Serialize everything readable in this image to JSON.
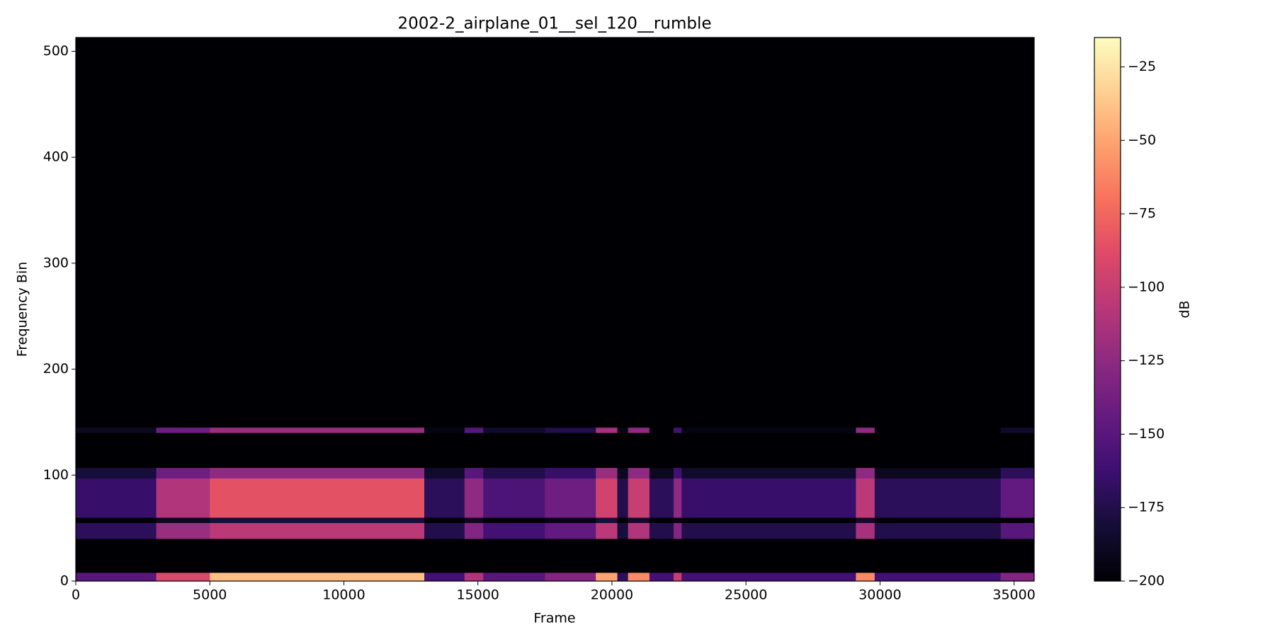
{
  "chart_data": {
    "type": "heatmap",
    "title": "2002-2_airplane_01__sel_120__rumble",
    "x_label": "Frame",
    "y_label": "Frequency Bin",
    "colorbar_label": "dB",
    "colormap": "magma",
    "xlim": [
      0,
      35750
    ],
    "ylim": [
      0,
      513
    ],
    "clim": [
      -200,
      -15
    ],
    "xticks": [
      0,
      5000,
      10000,
      15000,
      20000,
      25000,
      30000,
      35000
    ],
    "yticks": [
      0,
      100,
      200,
      300,
      400,
      500
    ],
    "cticks": [
      {
        "value": -25,
        "label": "−25"
      },
      {
        "value": -50,
        "label": "−50"
      },
      {
        "value": -75,
        "label": "−75"
      },
      {
        "value": -100,
        "label": "−100"
      },
      {
        "value": -125,
        "label": "−125"
      },
      {
        "value": -150,
        "label": "−150"
      },
      {
        "value": -175,
        "label": "−175"
      },
      {
        "value": -200,
        "label": "−200"
      }
    ],
    "x_edges": [
      0,
      3000,
      5000,
      13000,
      14500,
      15200,
      17500,
      19400,
      20200,
      20600,
      21400,
      22300,
      22600,
      29100,
      29800,
      34500,
      35750
    ],
    "y_edges": [
      0,
      8,
      40,
      55,
      60,
      97,
      107,
      140,
      145,
      513
    ],
    "values": [
      [
        -150,
        -90,
        -40,
        -160,
        -110,
        -150,
        -130,
        -50,
        -170,
        -60,
        -160,
        -100,
        -160,
        -60,
        -160,
        -130
      ],
      [
        -200,
        -200,
        -200,
        -200,
        -200,
        -200,
        -200,
        -200,
        -200,
        -200,
        -200,
        -200,
        -200,
        -200,
        -200,
        -200
      ],
      [
        -170,
        -120,
        -105,
        -175,
        -130,
        -160,
        -145,
        -105,
        -180,
        -110,
        -175,
        -130,
        -175,
        -115,
        -175,
        -150
      ],
      [
        -200,
        -190,
        -180,
        -200,
        -190,
        -200,
        -195,
        -180,
        -200,
        -185,
        -200,
        -195,
        -200,
        -185,
        -200,
        -200
      ],
      [
        -165,
        -110,
        -85,
        -170,
        -125,
        -155,
        -140,
        -95,
        -175,
        -100,
        -170,
        -125,
        -165,
        -105,
        -170,
        -145
      ],
      [
        -180,
        -140,
        -125,
        -185,
        -150,
        -175,
        -165,
        -120,
        -190,
        -125,
        -190,
        -160,
        -185,
        -125,
        -190,
        -170
      ],
      [
        -200,
        -200,
        -200,
        -200,
        -200,
        -200,
        -200,
        -200,
        -200,
        -200,
        -200,
        -200,
        -200,
        -200,
        -200,
        -200
      ],
      [
        -190,
        -140,
        -120,
        -195,
        -150,
        -185,
        -175,
        -115,
        -195,
        -125,
        -200,
        -160,
        -195,
        -125,
        -200,
        -185
      ],
      [
        -200,
        -200,
        -200,
        -200,
        -200,
        -200,
        -200,
        -200,
        -200,
        -200,
        -200,
        -200,
        -200,
        -200,
        -200,
        -200
      ]
    ]
  }
}
